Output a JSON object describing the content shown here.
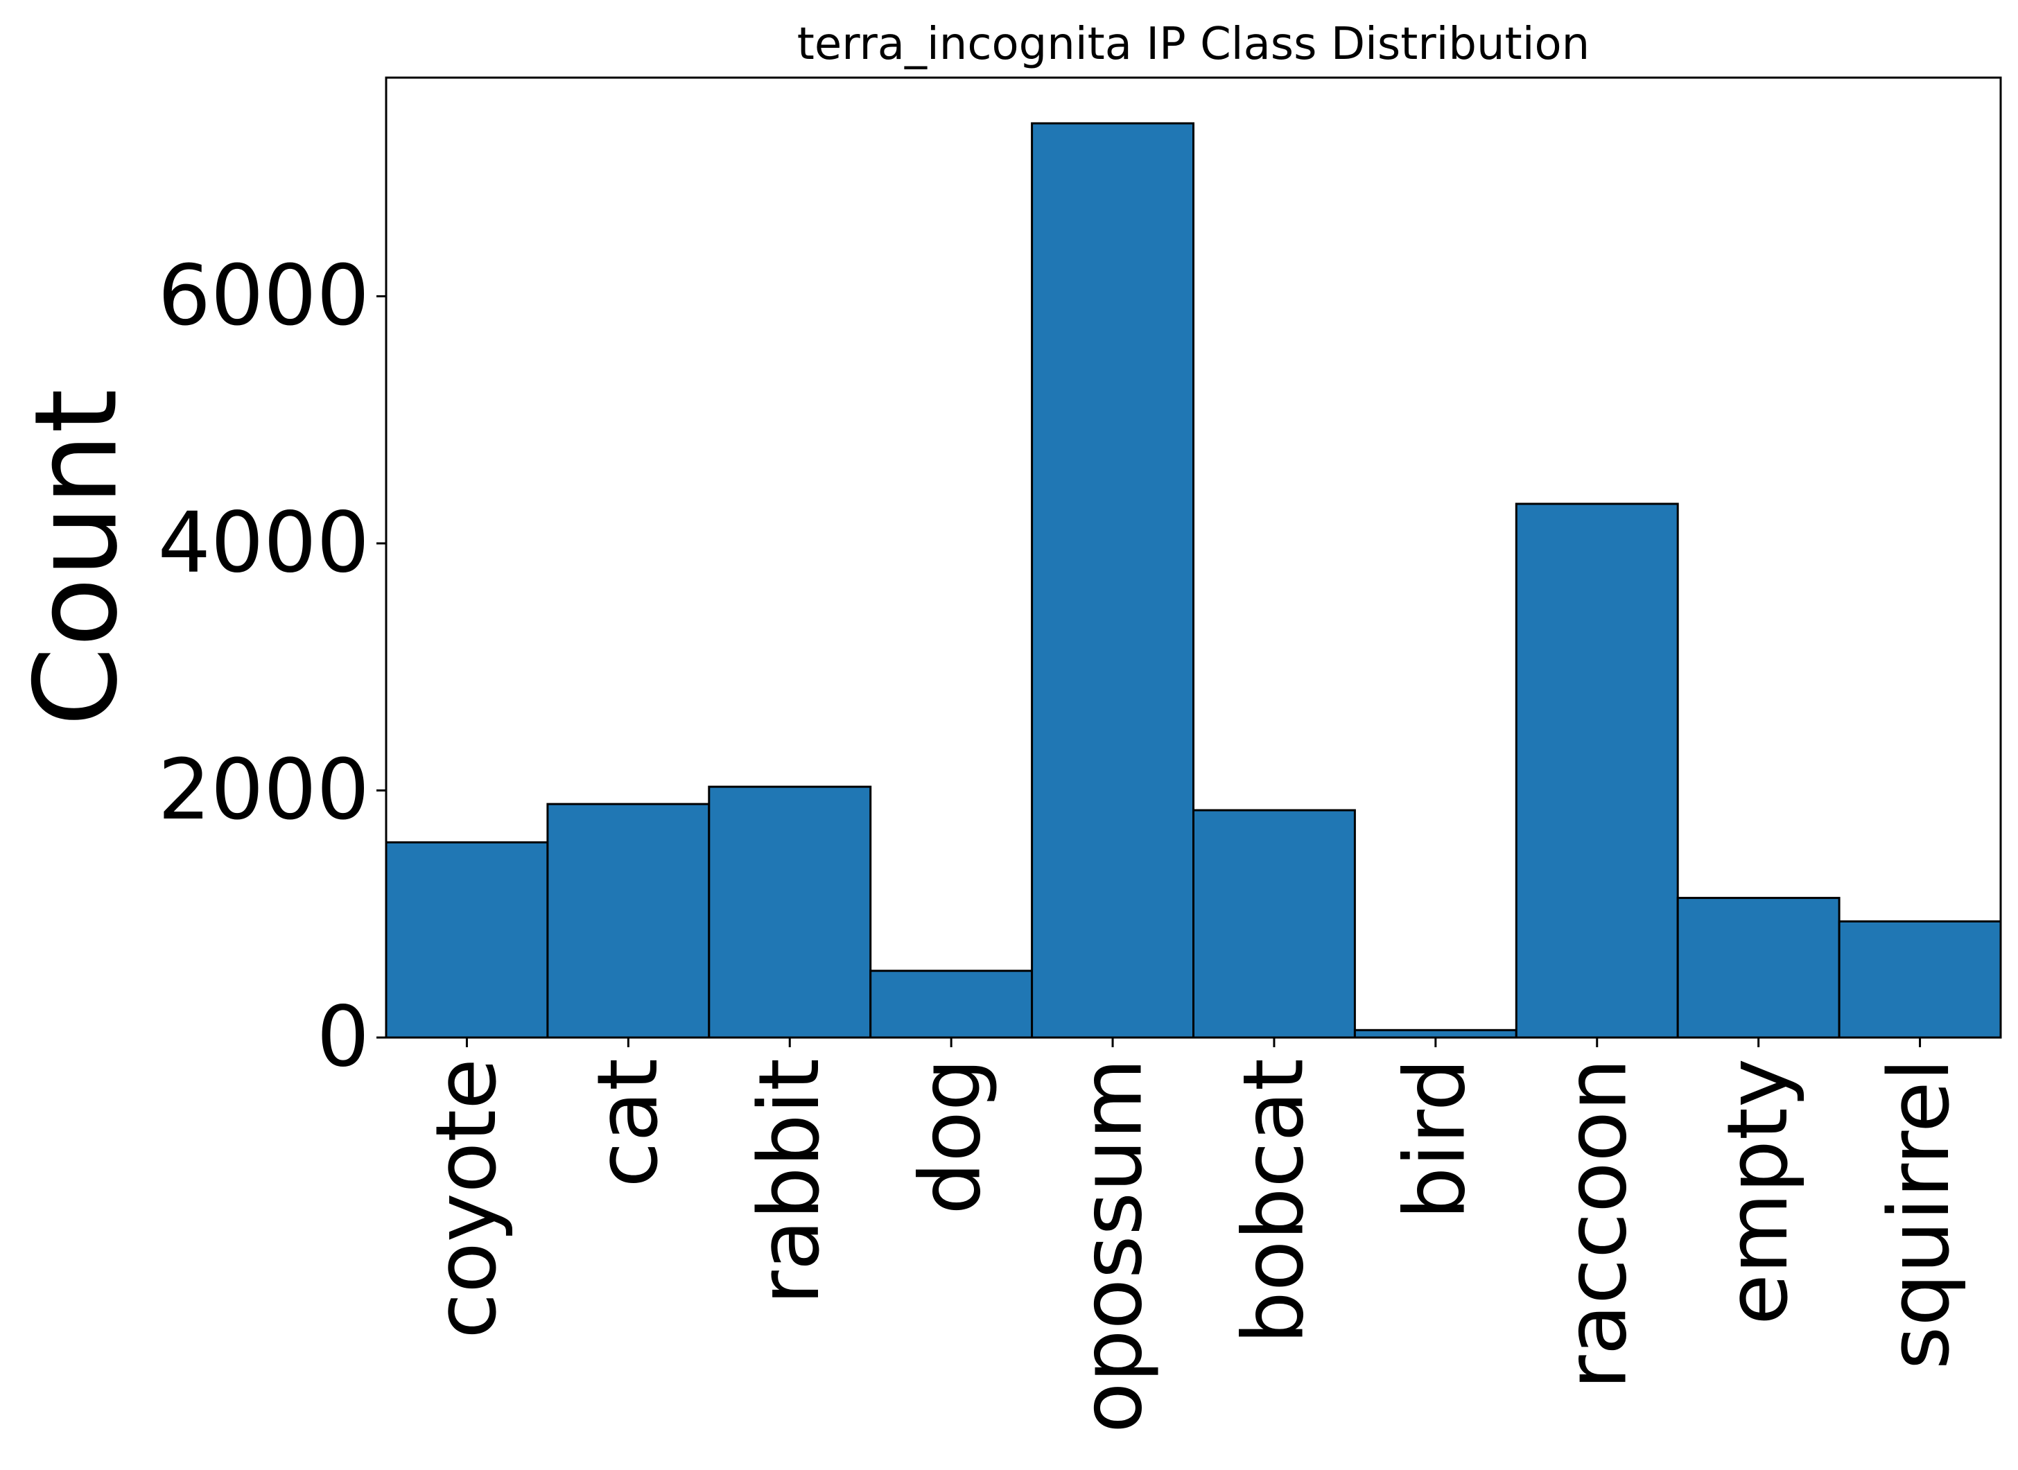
{
  "chart_data": {
    "type": "bar",
    "title": "terra_incognita  IP  Class Distribution",
    "xlabel": "",
    "ylabel": "Count",
    "categories": [
      "coyote",
      "cat",
      "rabbit",
      "dog",
      "opossum",
      "bobcat",
      "bird",
      "raccoon",
      "empty",
      "squirrel"
    ],
    "values": [
      1580,
      1890,
      2030,
      540,
      7400,
      1840,
      60,
      4320,
      1130,
      940
    ],
    "ylim": [
      0,
      7770
    ],
    "yticks": [
      0,
      2000,
      4000,
      6000
    ],
    "ytick_labels": [
      "0",
      "2000",
      "4000",
      "6000"
    ],
    "grid": false,
    "legend": "none",
    "bar_color": "#2077b4",
    "edge_color": "#000000"
  }
}
